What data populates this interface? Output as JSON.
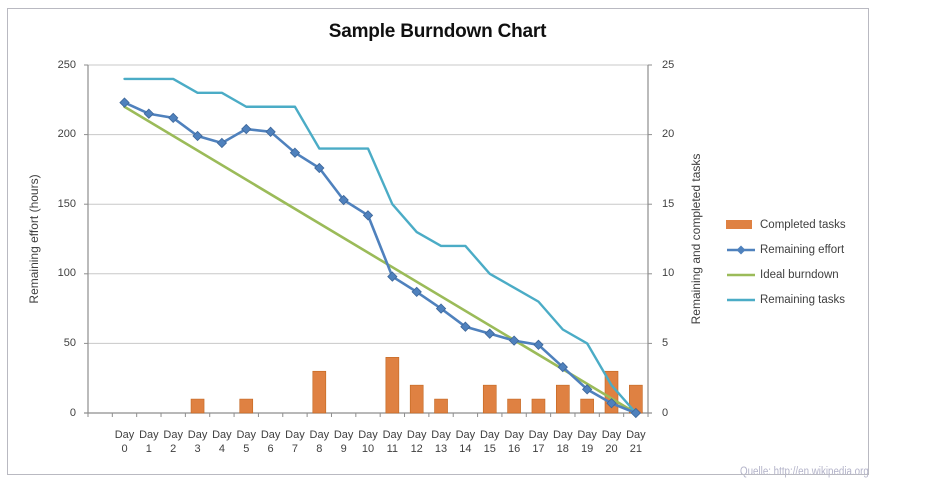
{
  "title": "Sample Burndown Chart",
  "watermark": "Quelle: http://en.wikipedia.org",
  "axes": {
    "left": {
      "title": "Remaining effort (hours)",
      "ticks": [
        0,
        50,
        100,
        150,
        200,
        250
      ]
    },
    "right": {
      "title": "Remaining and completed tasks",
      "ticks": [
        0,
        5,
        10,
        15,
        20,
        25
      ]
    },
    "x": {
      "day_prefix": "Day",
      "day_numbers": [
        "0",
        "1",
        "2",
        "3",
        "4",
        "5",
        "6",
        "7",
        "8",
        "9",
        "10",
        "11",
        "12",
        "13",
        "14",
        "15",
        "16",
        "17",
        "18",
        "19",
        "20",
        "21"
      ]
    }
  },
  "colors": {
    "completed_tasks": "#df8142",
    "completed_tasks_edge": "#c2661f",
    "remaining_effort": "#4f81bd",
    "remaining_effort_marker_edge": "#3d6699",
    "ideal_burndown": "#9bbb59",
    "remaining_tasks": "#4bacc6",
    "gridline": "#c8c8c8",
    "axis_line": "#8e8e8e",
    "text": "#3f3f3f"
  },
  "chart_data": {
    "type": "combo",
    "title": "Sample Burndown Chart",
    "categories": [
      0,
      1,
      2,
      3,
      4,
      5,
      6,
      7,
      8,
      9,
      10,
      11,
      12,
      13,
      14,
      15,
      16,
      17,
      18,
      19,
      20,
      21
    ],
    "category_label_prefix": "Day",
    "y_left": {
      "label": "Remaining effort (hours)",
      "range": [
        0,
        250
      ],
      "tick_step": 50
    },
    "y_right": {
      "label": "Remaining and completed tasks",
      "range": [
        0,
        25
      ],
      "tick_step": 5
    },
    "grid": "horizontal",
    "legend_position": "right",
    "series": [
      {
        "name": "Completed tasks",
        "type": "bar",
        "axis": "right",
        "color": "#df8142",
        "values": [
          0,
          0,
          0,
          1,
          0,
          1,
          0,
          0,
          3,
          0,
          0,
          4,
          2,
          1,
          0,
          2,
          1,
          1,
          2,
          1,
          3,
          2
        ]
      },
      {
        "name": "Remaining effort",
        "type": "line",
        "axis": "left",
        "color": "#4f81bd",
        "marker": "diamond",
        "values": [
          223,
          215,
          212,
          199,
          194,
          204,
          202,
          187,
          176,
          153,
          142,
          98,
          87,
          75,
          62,
          57,
          52,
          49,
          33,
          17,
          7,
          0
        ]
      },
      {
        "name": "Ideal burndown",
        "type": "line",
        "axis": "left",
        "color": "#9bbb59",
        "marker": "none",
        "values": [
          220,
          209.5,
          199,
          188.6,
          178.1,
          167.6,
          157.1,
          146.7,
          136.2,
          125.7,
          115.2,
          104.8,
          94.3,
          83.8,
          73.3,
          62.9,
          52.4,
          41.9,
          31.4,
          21,
          10.5,
          0
        ]
      },
      {
        "name": "Remaining tasks",
        "type": "line",
        "axis": "right",
        "color": "#4bacc6",
        "marker": "none",
        "values": [
          24,
          24,
          24,
          23,
          23,
          22,
          22,
          22,
          19,
          19,
          19,
          15,
          13,
          12,
          12,
          10,
          9,
          8,
          6,
          5,
          2,
          0
        ]
      }
    ]
  }
}
